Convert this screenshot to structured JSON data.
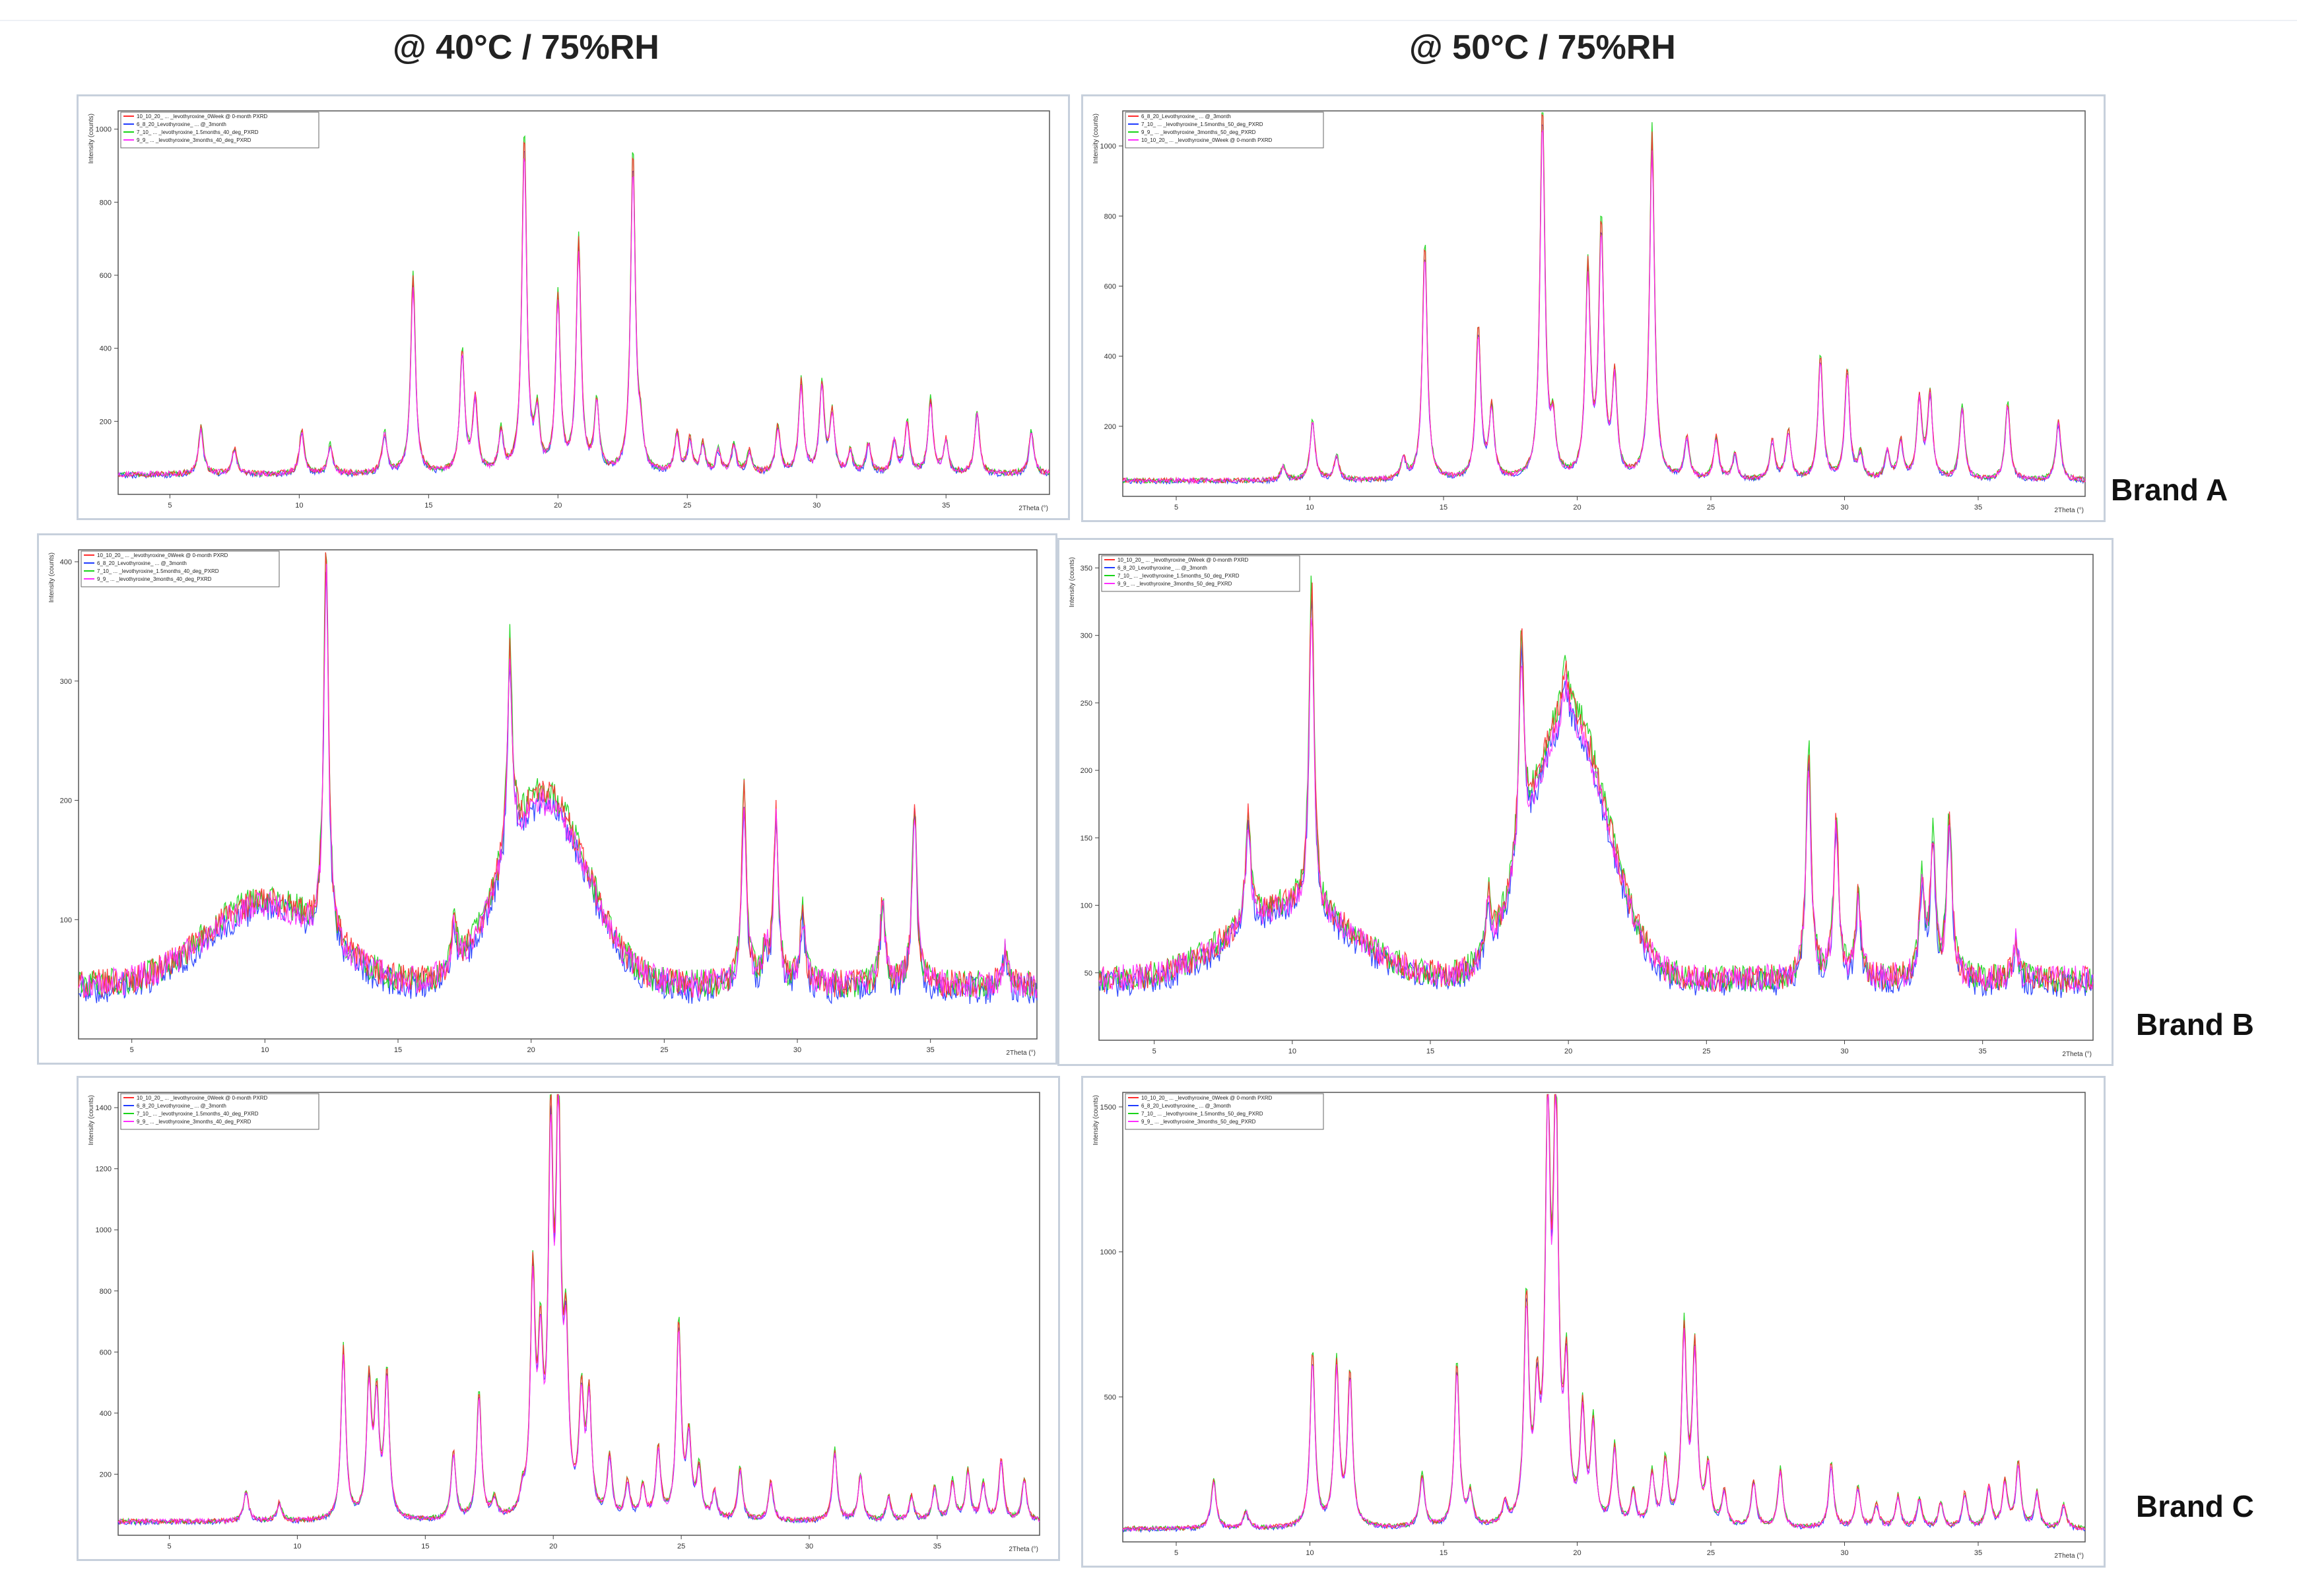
{
  "headers": {
    "col1": "@ 40°C / 75%RH",
    "col2": "@ 50°C / 75%RH"
  },
  "brands": [
    "Brand A",
    "Brand B",
    "Brand C"
  ],
  "series_colors": [
    "#ff2b2b",
    "#1f3bff",
    "#18d418",
    "#ff2bff"
  ],
  "chart_data": [
    {
      "id": "A40",
      "type": "line",
      "xlabel": "2Theta (°)",
      "ylabel": "Intensity (counts)",
      "xlim": [
        3,
        39
      ],
      "ylim": [
        0,
        1050
      ],
      "xticks": [
        5,
        10,
        15,
        20,
        25,
        30,
        35
      ],
      "yticks": [
        200,
        400,
        600,
        800,
        1000
      ],
      "legend": [
        "10_10_20_ ... _levothyroxine_0Week @ 0-month PXRD",
        "6_8_20_Levothyroxine_ ... @_3month",
        "7_10_ ... _levothyroxine_1.5months_40_deg_PXRD",
        "9_9_ ... _levothyroxine_3months_40_deg_PXRD"
      ],
      "baseline": 55,
      "noise": 8,
      "peaks": [
        [
          6.2,
          130
        ],
        [
          7.5,
          70
        ],
        [
          10.1,
          120
        ],
        [
          11.2,
          80
        ],
        [
          13.3,
          110
        ],
        [
          14.4,
          540
        ],
        [
          16.3,
          330
        ],
        [
          16.8,
          200
        ],
        [
          17.8,
          110
        ],
        [
          18.7,
          920
        ],
        [
          19.2,
          150
        ],
        [
          20.0,
          480
        ],
        [
          20.8,
          630
        ],
        [
          21.5,
          190
        ],
        [
          22.9,
          870
        ],
        [
          23.2,
          90
        ],
        [
          24.6,
          110
        ],
        [
          25.1,
          90
        ],
        [
          25.6,
          80
        ],
        [
          26.2,
          60
        ],
        [
          26.8,
          80
        ],
        [
          27.4,
          60
        ],
        [
          28.5,
          130
        ],
        [
          29.4,
          250
        ],
        [
          30.2,
          240
        ],
        [
          30.6,
          160
        ],
        [
          31.3,
          60
        ],
        [
          32.0,
          80
        ],
        [
          33.0,
          90
        ],
        [
          33.5,
          140
        ],
        [
          34.4,
          200
        ],
        [
          35.0,
          90
        ],
        [
          36.2,
          170
        ],
        [
          38.3,
          120
        ]
      ]
    },
    {
      "id": "A50",
      "type": "line",
      "xlabel": "2Theta (°)",
      "ylabel": "Intensity (counts)",
      "xlim": [
        3,
        39
      ],
      "ylim": [
        0,
        1100
      ],
      "xticks": [
        5,
        10,
        15,
        20,
        25,
        30,
        35
      ],
      "yticks": [
        200,
        400,
        600,
        800,
        1000
      ],
      "legend": [
        "6_8_20_Levothyroxine_ ... @_3month",
        "7_10_ ... _levothyroxine_1.5months_50_deg_PXRD",
        "9_9_ ... _levothyroxine_3months_50_deg_PXRD",
        "10_10_20_ ... _levothyroxine_0Week @ 0-month PXRD"
      ],
      "baseline": 45,
      "noise": 7,
      "peaks": [
        [
          9.0,
          40
        ],
        [
          10.1,
          170
        ],
        [
          11.0,
          70
        ],
        [
          13.5,
          60
        ],
        [
          14.3,
          670
        ],
        [
          16.3,
          430
        ],
        [
          16.8,
          200
        ],
        [
          18.7,
          1060
        ],
        [
          19.1,
          140
        ],
        [
          20.4,
          590
        ],
        [
          20.9,
          710
        ],
        [
          21.4,
          280
        ],
        [
          22.8,
          990
        ],
        [
          24.1,
          120
        ],
        [
          25.2,
          120
        ],
        [
          25.9,
          70
        ],
        [
          27.3,
          110
        ],
        [
          27.9,
          140
        ],
        [
          29.1,
          350
        ],
        [
          30.1,
          310
        ],
        [
          30.6,
          70
        ],
        [
          31.6,
          80
        ],
        [
          32.1,
          110
        ],
        [
          32.8,
          230
        ],
        [
          33.2,
          240
        ],
        [
          34.4,
          210
        ],
        [
          36.1,
          220
        ],
        [
          38.0,
          170
        ]
      ]
    },
    {
      "id": "B40",
      "type": "line",
      "xlabel": "2Theta (°)",
      "ylabel": "Intensity (counts)",
      "xlim": [
        3,
        39
      ],
      "ylim": [
        0,
        410
      ],
      "xticks": [
        5,
        10,
        15,
        20,
        25,
        30,
        35
      ],
      "yticks": [
        100,
        200,
        300,
        400
      ],
      "legend": [
        "10_10_20_ ... _levothyroxine_0Week @ 0-month PXRD",
        "6_8_20_Levothyroxine_ ... @_3month",
        "7_10_ ... _levothyroxine_1.5months_40_deg_PXRD",
        "9_9_ ... _levothyroxine_3months_40_deg_PXRD"
      ],
      "baseline": 45,
      "noise": 12,
      "humps": [
        [
          10.0,
          70,
          2.2
        ],
        [
          20.5,
          160,
          1.6
        ]
      ],
      "peaks": [
        [
          12.3,
          330
        ],
        [
          17.1,
          40
        ],
        [
          19.2,
          170
        ],
        [
          28.0,
          160
        ],
        [
          28.8,
          30
        ],
        [
          29.2,
          140
        ],
        [
          30.2,
          60
        ],
        [
          33.2,
          70
        ],
        [
          34.4,
          150
        ],
        [
          37.8,
          30
        ]
      ]
    },
    {
      "id": "B50",
      "type": "line",
      "xlabel": "2Theta (°)",
      "ylabel": "Intensity (counts)",
      "xlim": [
        3,
        39
      ],
      "ylim": [
        0,
        360
      ],
      "xticks": [
        5,
        10,
        15,
        20,
        25,
        30,
        35
      ],
      "yticks": [
        50,
        100,
        150,
        200,
        250,
        300,
        350
      ],
      "legend": [
        "10_10_20_ ... _levothyroxine_0Week @ 0-month PXRD",
        "6_8_20_Levothyroxine_ ... @_3month",
        "7_10_ ... _levothyroxine_1.5months_50_deg_PXRD",
        "9_9_ ... _levothyroxine_3months_50_deg_PXRD"
      ],
      "baseline": 45,
      "noise": 10,
      "humps": [
        [
          10.0,
          55,
          2.2
        ],
        [
          20.0,
          200,
          1.4
        ]
      ],
      "peaks": [
        [
          8.4,
          80
        ],
        [
          10.7,
          240
        ],
        [
          17.1,
          40
        ],
        [
          18.3,
          160
        ],
        [
          19.9,
          30
        ],
        [
          28.7,
          170
        ],
        [
          29.7,
          120
        ],
        [
          30.5,
          60
        ],
        [
          32.8,
          70
        ],
        [
          33.2,
          100
        ],
        [
          33.8,
          120
        ],
        [
          36.2,
          30
        ]
      ]
    },
    {
      "id": "C40",
      "type": "line",
      "xlabel": "2Theta (°)",
      "ylabel": "Intensity (counts)",
      "xlim": [
        3,
        39
      ],
      "ylim": [
        0,
        1450
      ],
      "xticks": [
        5,
        10,
        15,
        20,
        25,
        30,
        35
      ],
      "yticks": [
        200,
        400,
        600,
        800,
        1000,
        1200,
        1400
      ],
      "legend": [
        "10_10_20_ ... _levothyroxine_0Week @ 0-month PXRD",
        "6_8_20_Levothyroxine_ ... @_3month",
        "7_10_ ... _levothyroxine_1.5months_40_deg_PXRD",
        "9_9_ ... _levothyroxine_3months_40_deg_PXRD"
      ],
      "baseline": 45,
      "noise": 8,
      "peaks": [
        [
          8.0,
          100
        ],
        [
          9.3,
          60
        ],
        [
          11.8,
          560
        ],
        [
          12.8,
          440
        ],
        [
          13.1,
          380
        ],
        [
          13.5,
          470
        ],
        [
          16.1,
          220
        ],
        [
          17.1,
          420
        ],
        [
          17.7,
          60
        ],
        [
          18.8,
          60
        ],
        [
          19.2,
          760
        ],
        [
          19.5,
          500
        ],
        [
          19.9,
          1190
        ],
        [
          20.2,
          1300
        ],
        [
          20.5,
          520
        ],
        [
          21.1,
          380
        ],
        [
          21.4,
          380
        ],
        [
          22.2,
          200
        ],
        [
          22.9,
          120
        ],
        [
          23.5,
          110
        ],
        [
          24.1,
          230
        ],
        [
          24.9,
          640
        ],
        [
          25.3,
          260
        ],
        [
          25.7,
          160
        ],
        [
          26.3,
          90
        ],
        [
          27.3,
          170
        ],
        [
          28.5,
          130
        ],
        [
          31.0,
          230
        ],
        [
          32.0,
          150
        ],
        [
          33.1,
          80
        ],
        [
          34.0,
          80
        ],
        [
          34.9,
          110
        ],
        [
          35.6,
          130
        ],
        [
          36.2,
          160
        ],
        [
          36.8,
          120
        ],
        [
          37.5,
          200
        ],
        [
          38.4,
          140
        ]
      ]
    },
    {
      "id": "C50",
      "type": "line",
      "xlabel": "2Theta (°)",
      "ylabel": "Intensity (counts)",
      "xlim": [
        3,
        39
      ],
      "ylim": [
        0,
        1550
      ],
      "xticks": [
        5,
        10,
        15,
        20,
        25,
        30,
        35
      ],
      "yticks": [
        500,
        1000,
        1500
      ],
      "legend": [
        "10_10_20_ ... _levothyroxine_0Week @ 0-month PXRD",
        "6_8_20_Levothyroxine_ ... @_3month",
        "7_10_ ... _levothyroxine_1.5months_50_deg_PXRD",
        "9_9_ ... _levothyroxine_3months_50_deg_PXRD"
      ],
      "baseline": 45,
      "noise": 8,
      "peaks": [
        [
          6.4,
          170
        ],
        [
          7.6,
          60
        ],
        [
          10.1,
          600
        ],
        [
          11.0,
          560
        ],
        [
          11.5,
          520
        ],
        [
          14.2,
          180
        ],
        [
          15.5,
          560
        ],
        [
          16.0,
          110
        ],
        [
          17.3,
          70
        ],
        [
          18.1,
          760
        ],
        [
          18.5,
          400
        ],
        [
          18.9,
          1380
        ],
        [
          19.2,
          1420
        ],
        [
          19.6,
          500
        ],
        [
          20.2,
          380
        ],
        [
          20.6,
          340
        ],
        [
          21.4,
          270
        ],
        [
          22.1,
          120
        ],
        [
          22.8,
          180
        ],
        [
          23.3,
          220
        ],
        [
          24.0,
          670
        ],
        [
          24.4,
          600
        ],
        [
          24.9,
          200
        ],
        [
          25.5,
          120
        ],
        [
          26.6,
          160
        ],
        [
          27.6,
          200
        ],
        [
          29.5,
          220
        ],
        [
          30.5,
          140
        ],
        [
          31.2,
          80
        ],
        [
          32.0,
          110
        ],
        [
          32.8,
          100
        ],
        [
          33.6,
          90
        ],
        [
          34.5,
          120
        ],
        [
          35.4,
          140
        ],
        [
          36.0,
          160
        ],
        [
          36.5,
          220
        ],
        [
          37.2,
          120
        ],
        [
          38.2,
          80
        ]
      ]
    }
  ]
}
